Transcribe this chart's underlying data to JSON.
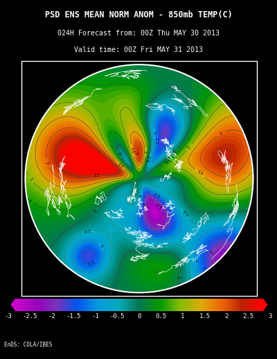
{
  "title_line1": "PSD ENS MEAN NORM ANOM - 850mb TEMP(C)",
  "title_line2": "024H Forecast from: 00Z Thu MAY 30 2013",
  "title_line3": "Valid time: 00Z Fri MAY 31 2013",
  "credit": "EnDS: COLA/IBES",
  "colorbar_ticks": [
    -3,
    -2.5,
    -2,
    -1.5,
    -1,
    -0.5,
    0,
    0.5,
    1,
    1.5,
    2,
    2.5,
    3
  ],
  "cb_colors": [
    "#cc00cc",
    "#9900bb",
    "#7733bb",
    "#0055ee",
    "#0099dd",
    "#00aabb",
    "#007755",
    "#009900",
    "#88bb00",
    "#ddaa00",
    "#ee6600",
    "#bb2200",
    "#ff0000"
  ],
  "bg_color": "#000000",
  "text_color": "#ffffff",
  "map_bg": "#006633",
  "figsize": [
    4.0,
    5.18
  ],
  "dpi": 100
}
